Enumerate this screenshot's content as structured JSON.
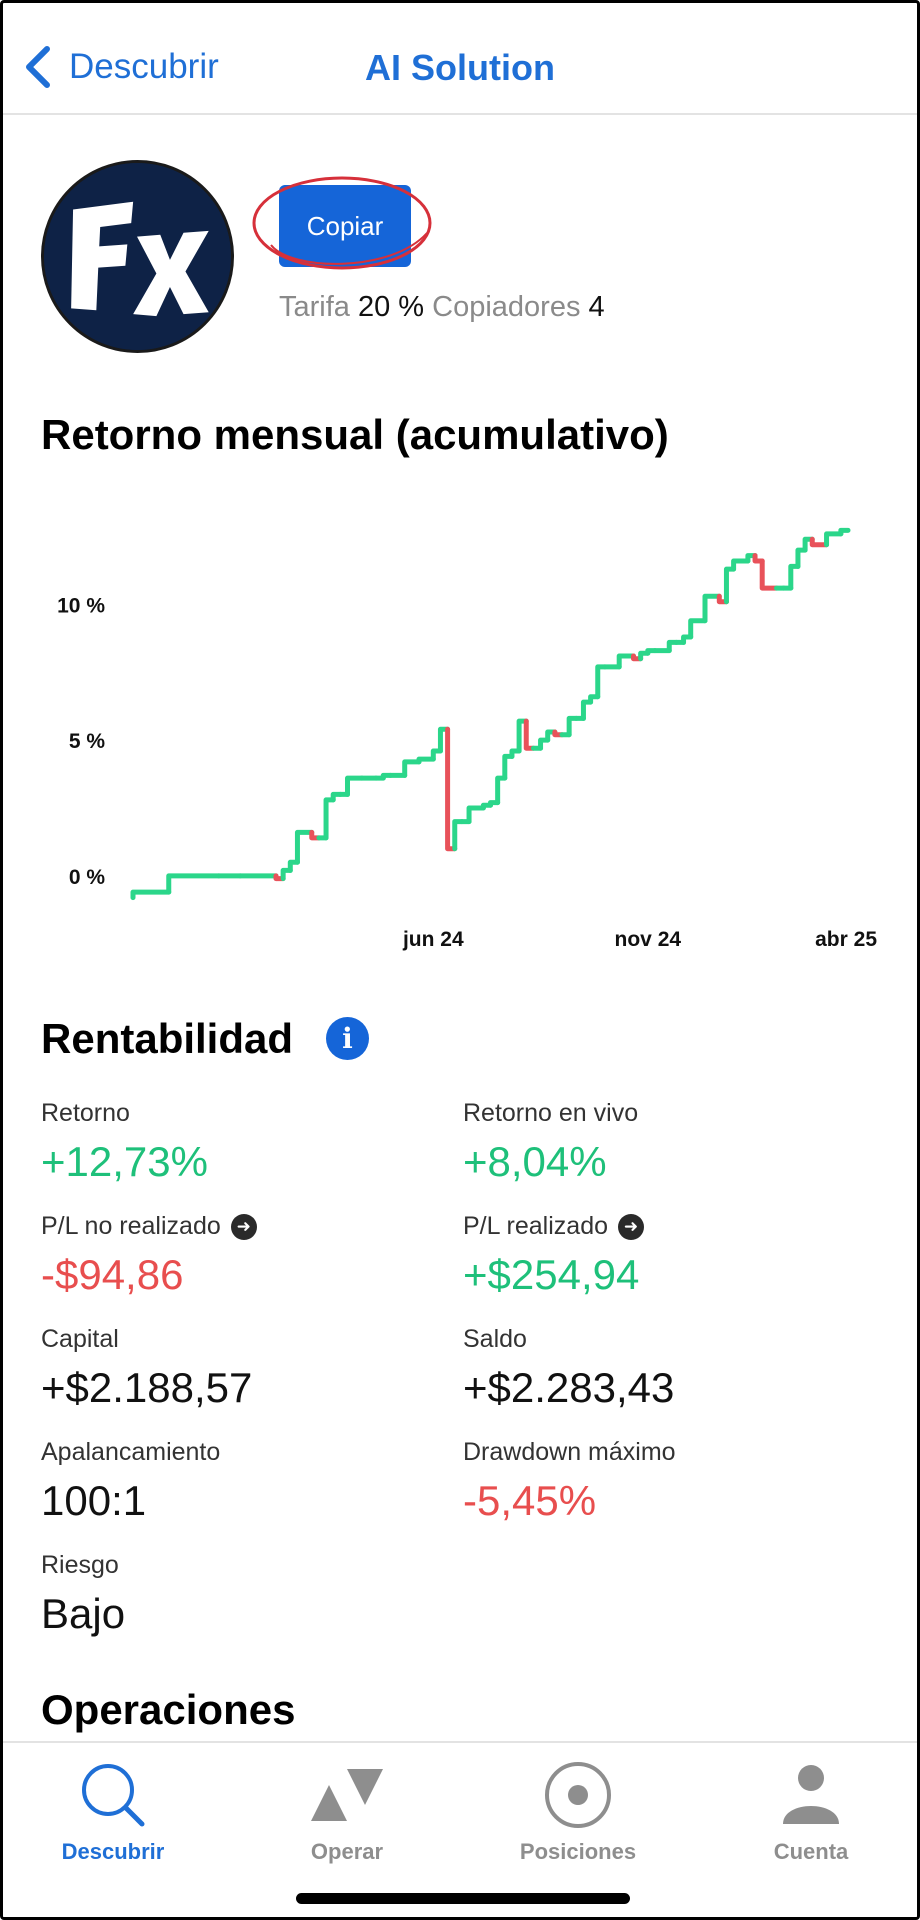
{
  "header": {
    "back_label": "Descubrir",
    "title": "AI Solution"
  },
  "profile": {
    "copy_label": "Copiar",
    "fee_label": "Tarifa",
    "fee_value": "20 %",
    "copiers_label": "Copiadores",
    "copiers_value": "4"
  },
  "chart_section": {
    "title": "Retorno mensual (acumulativo)"
  },
  "chart_data": {
    "type": "line",
    "title": "Retorno mensual (acumulativo)",
    "xlabel": "",
    "ylabel": "",
    "x_ticks": [
      "jun 24",
      "nov 24",
      "abr 25"
    ],
    "y_ticks": [
      "0 %",
      "5 %",
      "10 %"
    ],
    "ylim": [
      -1,
      13
    ],
    "grid": false,
    "legend": "none",
    "colors": {
      "up": "#2bd68a",
      "down": "#e8525a"
    },
    "series": [
      {
        "x": [
          0,
          0.05,
          0.12,
          0.15,
          0.2,
          0.21,
          0.22,
          0.23,
          0.25,
          0.26,
          0.27,
          0.28,
          0.29,
          0.3,
          0.32,
          0.34,
          0.35,
          0.36,
          0.38,
          0.4,
          0.42,
          0.43,
          0.44,
          0.45,
          0.46,
          0.47,
          0.49,
          0.5,
          0.51,
          0.52,
          0.53,
          0.54,
          0.55,
          0.56,
          0.57,
          0.58,
          0.59,
          0.6,
          0.61,
          0.62,
          0.63,
          0.64,
          0.65,
          0.66,
          0.68,
          0.7,
          0.71,
          0.72,
          0.73,
          0.75,
          0.76,
          0.77,
          0.78,
          0.8,
          0.82,
          0.83,
          0.84,
          0.85,
          0.86,
          0.87,
          0.88,
          0.9,
          0.91,
          0.92,
          0.93,
          0.94,
          0.95,
          0.97,
          0.99,
          1.0
        ],
        "y": [
          -0.8,
          -0.6,
          0.0,
          0.0,
          0.0,
          -0.1,
          0.2,
          0.5,
          1.6,
          1.4,
          1.4,
          2.8,
          3.0,
          3.0,
          3.6,
          3.6,
          3.6,
          3.7,
          3.7,
          4.2,
          4.3,
          4.6,
          5.4,
          1.0,
          2.0,
          2.0,
          2.5,
          2.6,
          2.7,
          3.6,
          4.4,
          4.6,
          5.7,
          4.7,
          4.7,
          5.0,
          5.3,
          5.2,
          5.2,
          5.8,
          5.8,
          6.4,
          6.6,
          7.7,
          7.7,
          8.1,
          8.0,
          8.2,
          8.3,
          8.3,
          8.6,
          8.6,
          8.8,
          9.4,
          10.3,
          10.1,
          11.3,
          11.6,
          11.6,
          11.8,
          11.6,
          10.6,
          10.6,
          10.6,
          11.4,
          12.0,
          12.4,
          12.2,
          12.6,
          12.73
        ]
      }
    ]
  },
  "profitability": {
    "title": "Rentabilidad",
    "info_icon": "info-icon",
    "stats": {
      "return": {
        "label": "Retorno",
        "value": "+12,73%"
      },
      "live_return": {
        "label": "Retorno en vivo",
        "value": "+8,04%"
      },
      "unrealized": {
        "label": "P/L no realizado",
        "value": "-$94,86"
      },
      "realized": {
        "label": "P/L realizado",
        "value": "+$254,94"
      },
      "capital": {
        "label": "Capital",
        "value": "+$2.188,57"
      },
      "balance": {
        "label": "Saldo",
        "value": "+$2.283,43"
      },
      "leverage": {
        "label": "Apalancamiento",
        "value": "100:1"
      },
      "drawdown": {
        "label": "Drawdown máximo",
        "value": "-5,45%"
      },
      "risk": {
        "label": "Riesgo",
        "value": "Bajo"
      }
    }
  },
  "operations": {
    "title": "Operaciones"
  },
  "tabbar": {
    "items": [
      {
        "label": "Descubrir",
        "icon": "search-icon",
        "active": true
      },
      {
        "label": "Operar",
        "icon": "trade-icon",
        "active": false
      },
      {
        "label": "Posiciones",
        "icon": "positions-icon",
        "active": false
      },
      {
        "label": "Cuenta",
        "icon": "account-icon",
        "active": false
      }
    ]
  },
  "colors": {
    "accent": "#1565d8",
    "positive": "#1ec07a",
    "negative": "#e84e4e",
    "tab_inactive": "#8e8e8e"
  }
}
